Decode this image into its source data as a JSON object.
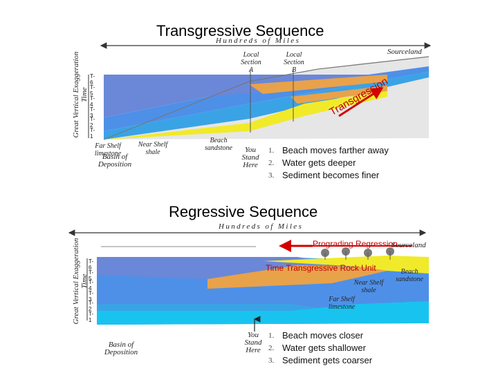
{
  "top": {
    "title": "Transgressive Sequence",
    "distance_label": "Hundreds of Miles",
    "axis_line1": "Great Vertical Exaggeration",
    "axis_line2": "Time",
    "time_ticks": [
      "T-6",
      "T-5",
      "T-4",
      "T-3",
      "T-2",
      "T-1"
    ],
    "local_section_a": [
      "Local",
      "Section",
      "A"
    ],
    "local_section_b": [
      "Local",
      "Section",
      "B"
    ],
    "sourceland": "Sourceland",
    "far_shelf": [
      "Far Shelf",
      "limestone"
    ],
    "near_shelf": [
      "Near Shelf",
      "shale"
    ],
    "basin": [
      "Basin of",
      "Deposition"
    ],
    "beach": [
      "Beach",
      "sandstone"
    ],
    "you_stand_here": [
      "You",
      "Stand",
      "Here"
    ],
    "process_word": "Transgression",
    "steps": [
      {
        "num": "1.",
        "text": "Beach moves farther away"
      },
      {
        "num": "2.",
        "text": "Water gets deeper"
      },
      {
        "num": "3.",
        "text": "Sediment becomes finer"
      }
    ]
  },
  "bottom": {
    "title": "Regressive Sequence",
    "distance_label": "Hundreds of Miles",
    "axis_line1": "Great Vertical Exaggeration",
    "axis_line2": "Time",
    "time_ticks": [
      "T-6",
      "T-5",
      "T-4",
      "T-3",
      "T-2",
      "T-1"
    ],
    "sourceland": "Sourceland",
    "prograding": "Prograding Regression",
    "time_transgressive": "Time Transgressive Rock Unit",
    "beach": [
      "Beach",
      "sandstone"
    ],
    "near_shelf": [
      "Near Shelf",
      "shale"
    ],
    "far_shelf": [
      "Far Shelf",
      "limestone"
    ],
    "basin": [
      "Basin of",
      "Deposition"
    ],
    "you_stand_here": [
      "You",
      "Stand",
      "Here"
    ],
    "steps": [
      {
        "num": "1.",
        "text": "Beach moves closer"
      },
      {
        "num": "2.",
        "text": "Water gets shallower"
      },
      {
        "num": "3.",
        "text": "Sediment gets coarser"
      }
    ]
  },
  "colors": {
    "limestone": "#3aa3e6",
    "shale": "#5f8be3",
    "sandstone": "#f0ea2a",
    "beach_orange": "#e8a24a",
    "land": "#d9d9d9",
    "arrow_red": "#d40000"
  }
}
